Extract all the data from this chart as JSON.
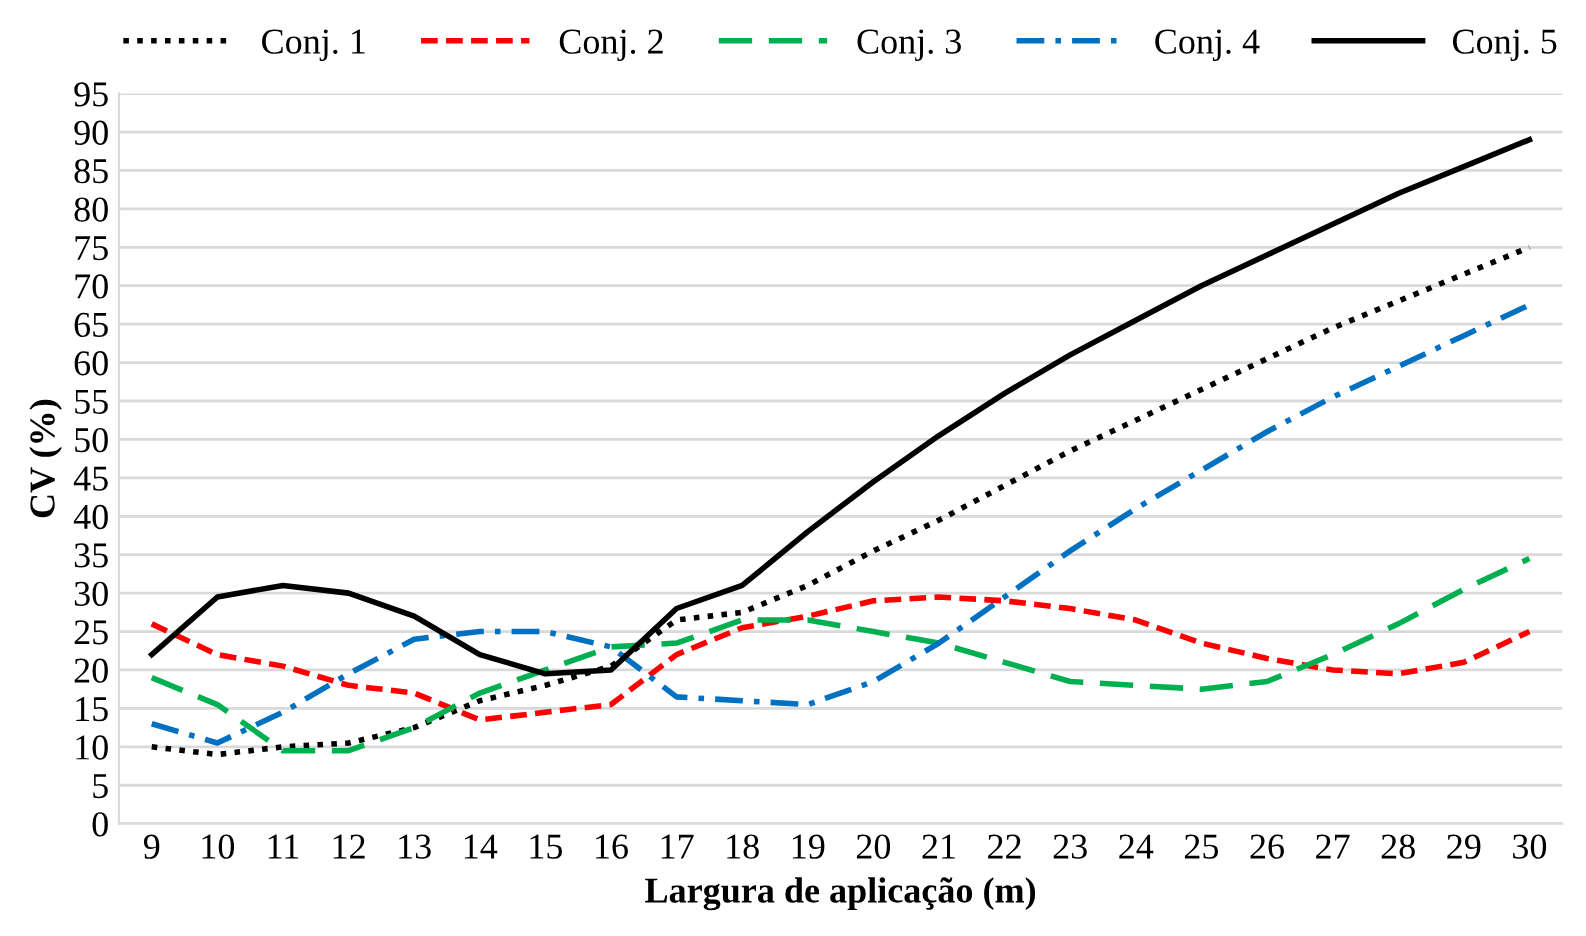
{
  "chart_data": {
    "type": "line",
    "xlabel": "Largura de aplicação (m)",
    "ylabel": "CV (%)",
    "categories": [
      "9",
      "10",
      "11",
      "12",
      "13",
      "14",
      "15",
      "16",
      "17",
      "18",
      "19",
      "20",
      "21",
      "22",
      "23",
      "24",
      "25",
      "26",
      "27",
      "28",
      "29",
      "30"
    ],
    "ylim": [
      0,
      95
    ],
    "yticks": [
      0,
      5,
      10,
      15,
      20,
      25,
      30,
      35,
      40,
      45,
      50,
      55,
      60,
      65,
      70,
      75,
      80,
      85,
      90,
      95
    ],
    "grid": "y",
    "legend": "top",
    "marker": "none",
    "series": [
      {
        "name": "Conj. 1",
        "color": "#000000",
        "line_style": "dotted",
        "values": [
          10,
          9,
          10,
          10.5,
          12.5,
          16,
          18,
          20.5,
          26.5,
          27.5,
          31,
          35.5,
          39.5,
          44,
          48.5,
          52.5,
          56.5,
          60.5,
          64.5,
          68,
          71.5,
          75
        ]
      },
      {
        "name": "Conj. 2",
        "color": "#ff0000",
        "line_style": "dashed",
        "values": [
          26,
          22,
          20.5,
          18,
          17,
          13.5,
          14.5,
          15.5,
          22,
          25.5,
          27,
          29,
          29.5,
          29,
          28,
          26.5,
          23.5,
          21.5,
          20,
          19.5,
          21,
          25
        ]
      },
      {
        "name": "Conj. 3",
        "color": "#00b050",
        "line_style": "longdash",
        "values": [
          19,
          15.5,
          9.5,
          9.5,
          12.5,
          17,
          20,
          23,
          23.5,
          26.5,
          26.5,
          25,
          23.5,
          21,
          18.5,
          18,
          17.5,
          18.5,
          22,
          26,
          30.5,
          34.5
        ]
      },
      {
        "name": "Conj. 4",
        "color": "#0070c0",
        "line_style": "dashdot",
        "values": [
          13,
          10.5,
          14.5,
          19.5,
          24,
          25,
          25,
          23,
          16.5,
          16,
          15.5,
          18.5,
          23.5,
          29.5,
          35.5,
          41,
          46,
          51,
          55.5,
          59.5,
          63.5,
          67.5
        ]
      },
      {
        "name": "Conj. 5",
        "color": "#000000",
        "line_style": "solid",
        "values": [
          22,
          29.5,
          31,
          30,
          27,
          22,
          19.5,
          20,
          28,
          31,
          38,
          44.5,
          50.5,
          56,
          61,
          65.5,
          70,
          74,
          78,
          82,
          85.5,
          89
        ]
      }
    ]
  }
}
